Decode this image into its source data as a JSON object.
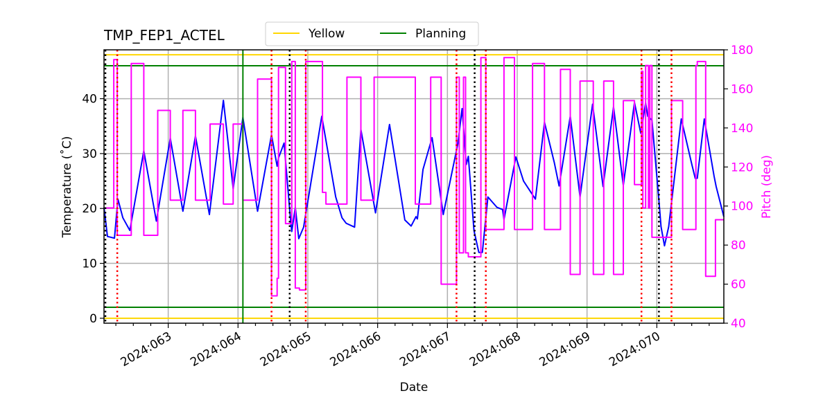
{
  "chart_data": {
    "type": "line",
    "title": "TMP_FEP1_ACTEL",
    "xlabel": "Date",
    "ylabel": "Temperature ($^\\circ$C)",
    "ylabel_display": "Temperature (˚C)",
    "y2label": "Pitch (deg)",
    "xlim": [
      62.08,
      70.96
    ],
    "ylim": [
      -0.9,
      48.9
    ],
    "y2lim": [
      40,
      180
    ],
    "grid": true,
    "legend_placement": "top-center",
    "x_ticks": [
      {
        "value": 63,
        "label": "2024:063"
      },
      {
        "value": 64,
        "label": "2024:064"
      },
      {
        "value": 65,
        "label": "2024:065"
      },
      {
        "value": 66,
        "label": "2024:066"
      },
      {
        "value": 67,
        "label": "2024:067"
      },
      {
        "value": 68,
        "label": "2024:068"
      },
      {
        "value": 69,
        "label": "2024:069"
      },
      {
        "value": 70,
        "label": "2024:070"
      }
    ],
    "y_ticks": [
      0,
      10,
      20,
      30,
      40
    ],
    "y2_ticks": [
      40,
      60,
      80,
      100,
      120,
      140,
      160,
      180
    ],
    "legend": [
      {
        "label": "Yellow",
        "color": "#ffd700"
      },
      {
        "label": "Planning",
        "color": "#008000"
      }
    ],
    "limits": [
      {
        "name": "yellow-low",
        "value": 0,
        "color": "#ffd700"
      },
      {
        "name": "yellow-high",
        "value": 48,
        "color": "#ffd700"
      },
      {
        "name": "planning-low",
        "value": 2,
        "color": "#008000"
      },
      {
        "name": "planning-high",
        "value": 46,
        "color": "#008000"
      }
    ],
    "vertical_lines": {
      "green": {
        "color": "#008000",
        "x": [
          64.07
        ]
      },
      "black_dotted": {
        "color": "#000000",
        "x": [
          62.1,
          64.74,
          67.39,
          70.03
        ]
      },
      "red_dotted": {
        "color": "#ff0000",
        "x": [
          62.27,
          64.48,
          64.97,
          67.13,
          67.55,
          69.78,
          70.21
        ]
      }
    },
    "series": [
      {
        "name": "temperature",
        "axis": "left",
        "color": "#0000ff",
        "x": [
          62.08,
          62.13,
          62.23,
          62.28,
          62.35,
          62.45,
          62.65,
          62.83,
          63.03,
          63.21,
          63.39,
          63.59,
          63.79,
          63.93,
          64.07,
          64.28,
          64.48,
          64.56,
          64.58,
          64.66,
          64.75,
          64.77,
          64.82,
          64.87,
          64.94,
          65.2,
          65.4,
          65.49,
          65.55,
          65.67,
          65.76,
          65.97,
          66.17,
          66.39,
          66.48,
          66.55,
          66.57,
          66.65,
          66.78,
          66.94,
          67.15,
          67.21,
          67.27,
          67.3,
          67.38,
          67.45,
          67.5,
          67.58,
          67.71,
          67.79,
          67.81,
          67.98,
          68.09,
          68.26,
          68.39,
          68.53,
          68.6,
          68.76,
          68.9,
          69.08,
          69.23,
          69.38,
          69.52,
          69.68,
          69.77,
          69.84,
          69.87,
          69.93,
          70.03,
          70.06,
          70.11,
          70.17,
          70.35,
          70.5,
          70.55,
          70.58,
          70.68,
          70.82,
          70.85,
          70.96
        ],
        "values": [
          20.2,
          14.9,
          14.6,
          21.7,
          18.3,
          16.0,
          30.5,
          17.7,
          32.8,
          19.5,
          33.2,
          18.9,
          39.7,
          23.6,
          36.6,
          19.5,
          33.4,
          27.7,
          29.2,
          31.9,
          18.3,
          15.8,
          20.2,
          14.5,
          16.6,
          36.8,
          22.1,
          18.3,
          17.3,
          16.6,
          34.4,
          19.2,
          35.3,
          17.9,
          16.8,
          18.5,
          18.1,
          27.1,
          32.9,
          18.9,
          31.8,
          38.2,
          28.0,
          29.5,
          16.0,
          12.0,
          12.0,
          22.1,
          20.2,
          19.8,
          18.0,
          29.4,
          25.0,
          21.7,
          35.7,
          28.4,
          24.1,
          36.8,
          22.1,
          39.0,
          24.0,
          38.5,
          24.2,
          39.3,
          33.7,
          39.2,
          36.8,
          36.1,
          21.4,
          16.7,
          13.2,
          16.7,
          36.3,
          28.1,
          25.5,
          25.5,
          36.3,
          25.9,
          24.0,
          18.5
        ]
      },
      {
        "name": "pitch",
        "axis": "right",
        "color": "#ff00ff",
        "x": [
          62.08,
          62.22,
          62.22,
          62.27,
          62.27,
          62.47,
          62.47,
          62.65,
          62.65,
          62.85,
          62.85,
          63.03,
          63.03,
          63.21,
          63.21,
          63.39,
          63.39,
          63.6,
          63.6,
          63.79,
          63.79,
          63.93,
          63.93,
          64.07,
          64.07,
          64.28,
          64.28,
          64.48,
          64.48,
          64.56,
          64.56,
          64.58,
          64.58,
          64.68,
          64.68,
          64.77,
          64.77,
          64.82,
          64.82,
          64.88,
          64.88,
          64.97,
          64.97,
          65.21,
          65.21,
          65.26,
          65.26,
          65.56,
          65.56,
          65.76,
          65.76,
          65.95,
          65.95,
          66.54,
          66.54,
          66.76,
          66.76,
          66.91,
          66.91,
          67.13,
          67.13,
          67.17,
          67.17,
          67.23,
          67.23,
          67.26,
          67.26,
          67.3,
          67.3,
          67.48,
          67.48,
          67.55,
          67.55,
          67.81,
          67.81,
          67.96,
          67.96,
          68.22,
          68.22,
          68.39,
          68.39,
          68.62,
          68.62,
          68.76,
          68.76,
          68.9,
          68.9,
          69.09,
          69.09,
          69.24,
          69.24,
          69.38,
          69.38,
          69.52,
          69.52,
          69.68,
          69.68,
          69.78,
          69.78,
          69.8,
          69.8,
          69.84,
          69.84,
          69.88,
          69.88,
          69.9,
          69.9,
          69.93,
          69.93,
          70.21,
          70.21,
          70.37,
          70.37,
          70.56,
          70.56,
          70.58,
          70.58,
          70.7,
          70.7,
          70.84,
          70.84,
          70.96
        ],
        "values": [
          99,
          99,
          175,
          175,
          85,
          85,
          173,
          173,
          85,
          85,
          149,
          149,
          103,
          103,
          149,
          149,
          103,
          103,
          142,
          142,
          101,
          101,
          142,
          142,
          103,
          103,
          165,
          165,
          54,
          54,
          63,
          63,
          171,
          171,
          91,
          91,
          174,
          174,
          58,
          58,
          57,
          57,
          174,
          174,
          107,
          107,
          101,
          101,
          166,
          166,
          103,
          103,
          166,
          166,
          101,
          101,
          166,
          166,
          60,
          60,
          166,
          166,
          76,
          76,
          166,
          166,
          76,
          76,
          74,
          74,
          176,
          176,
          88,
          88,
          176,
          176,
          88,
          88,
          173,
          173,
          88,
          88,
          170,
          170,
          65,
          65,
          164,
          164,
          65,
          65,
          164,
          164,
          65,
          65,
          154,
          154,
          111,
          111,
          169,
          169,
          99,
          99,
          172,
          172,
          99,
          99,
          172,
          172,
          84,
          84,
          154,
          154,
          88,
          88,
          172,
          172,
          174,
          174,
          64,
          64,
          93,
          93
        ]
      }
    ]
  }
}
